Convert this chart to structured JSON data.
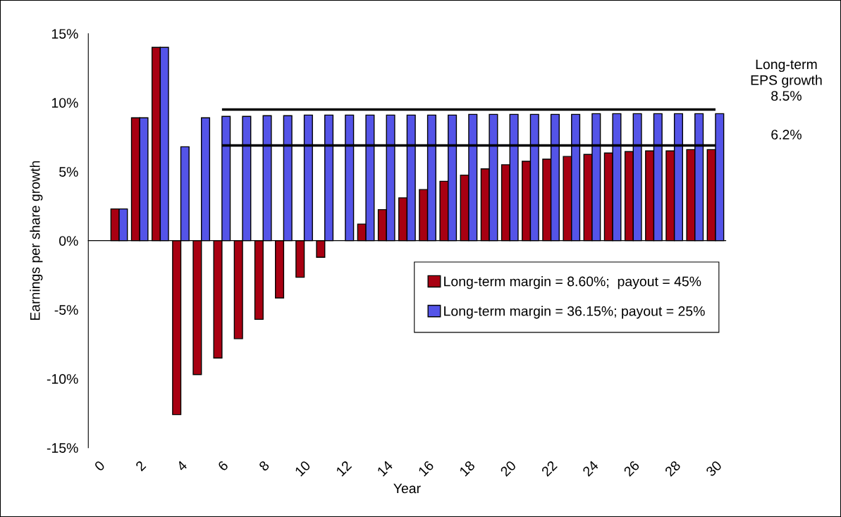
{
  "chart_data": {
    "type": "bar",
    "xlabel": "Year",
    "ylabel": "Earnings per share growth",
    "categories": [
      "0",
      null,
      "2",
      null,
      "4",
      null,
      "6",
      null,
      "8",
      null,
      "10",
      null,
      "12",
      null,
      "14",
      null,
      "16",
      null,
      "18",
      null,
      "20",
      null,
      "22",
      null,
      "24",
      null,
      "26",
      null,
      "28",
      null,
      "30"
    ],
    "series": [
      {
        "name": "Long-term margin = 8.60%;  payout = 45%",
        "color": "#a80012",
        "values": [
          null,
          2.3,
          8.9,
          14.0,
          -12.6,
          -9.7,
          -8.5,
          -7.1,
          -5.7,
          -4.15,
          -2.65,
          -1.2,
          null,
          1.2,
          2.25,
          3.1,
          3.7,
          4.3,
          4.75,
          5.2,
          5.5,
          5.75,
          5.9,
          6.1,
          6.25,
          6.35,
          6.45,
          6.5,
          6.5,
          6.6,
          6.6
        ]
      },
      {
        "name": "Long-term margin = 36.15%; payout = 25%",
        "color": "#5454e8",
        "values": [
          null,
          2.3,
          8.9,
          14.0,
          6.8,
          8.9,
          9.0,
          9.0,
          9.05,
          9.05,
          9.1,
          9.1,
          9.1,
          9.1,
          9.1,
          9.1,
          9.1,
          9.1,
          9.15,
          9.15,
          9.15,
          9.15,
          9.15,
          9.15,
          9.2,
          9.2,
          9.2,
          9.2,
          9.2,
          9.2,
          9.2
        ]
      },
      {
        "type": "line",
        "color": "#000000",
        "x": [
          "6",
          "30"
        ],
        "values": [
          9.5,
          9.5
        ]
      },
      {
        "type": "line",
        "color": "#000000",
        "x": [
          "6",
          "30"
        ],
        "values": [
          6.9,
          6.9
        ]
      }
    ],
    "ylim": [
      -15,
      15
    ],
    "yticks": [
      {
        "value": -15,
        "label": "-15%"
      },
      {
        "value": -10,
        "label": "-10%"
      },
      {
        "value": -5,
        "label": "-5%"
      },
      {
        "value": 0,
        "label": "0%"
      },
      {
        "value": 5,
        "label": "5%"
      },
      {
        "value": 10,
        "label": "10%"
      },
      {
        "value": 15,
        "label": "15%"
      }
    ],
    "annotations": [
      "Long-term\nEPS growth\n8.5%",
      "6.2%"
    ],
    "legend": "right",
    "grid": false
  }
}
